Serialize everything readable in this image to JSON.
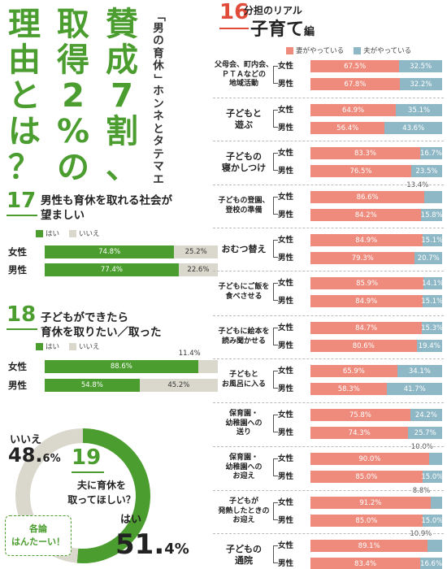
{
  "title": {
    "main_col1": [
      "理",
      "由",
      "と",
      "は",
      "？"
    ],
    "main_col2": [
      "取",
      "得",
      "2",
      "%",
      "の"
    ],
    "main_col3": [
      "賛",
      "成",
      "7",
      "割",
      "、"
    ],
    "sub_chars": [
      "「",
      "男",
      "の",
      "育",
      "休",
      "」",
      "ホ",
      "ン",
      "ネ",
      "と",
      "タ",
      "テ",
      "マ",
      "エ"
    ]
  },
  "colors": {
    "green": "#4a9d2e",
    "grey": "#dad8cc",
    "wife": "#ee8b7c",
    "husband": "#8fb8c6",
    "red": "#e04b3a"
  },
  "chart_data": [
    {
      "type": "bar",
      "number": "17",
      "title_line1": "男性も育休を取れる社会が",
      "title_line2": "望ましい",
      "legend": [
        "はい",
        "いいえ"
      ],
      "categories": [
        "女性",
        "男性"
      ],
      "series": [
        {
          "name": "はい",
          "values": [
            74.8,
            77.4
          ]
        },
        {
          "name": "いいえ",
          "values": [
            25.2,
            22.6
          ]
        }
      ],
      "labels": [
        [
          "74.8%",
          "25.2%"
        ],
        [
          "77.4%",
          "22.6%"
        ]
      ]
    },
    {
      "type": "bar",
      "number": "18",
      "title_line1": "子どもができたら",
      "title_line2": "育休を取りたい／取った",
      "legend": [
        "はい",
        "いいえ"
      ],
      "categories": [
        "女性",
        "男性"
      ],
      "series": [
        {
          "name": "はい",
          "values": [
            88.6,
            54.8
          ]
        },
        {
          "name": "いいえ",
          "values": [
            11.4,
            45.2
          ]
        }
      ],
      "labels": [
        [
          "88.6%",
          "11.4%"
        ],
        [
          "54.8%",
          "45.2%"
        ]
      ],
      "outside_labels": [
        true,
        false
      ]
    },
    {
      "type": "pie",
      "number": "19",
      "question_line1": "夫に育休を",
      "question_line2": "取ってほしい？",
      "slices": [
        {
          "name": "はい",
          "value": 51.4,
          "pct_int": "51.",
          "pct_dec": "4",
          "unit": "%"
        },
        {
          "name": "いいえ",
          "value": 48.6,
          "pct_int": "48.",
          "pct_dec": "6",
          "unit": "%"
        }
      ],
      "note_line1": "各論",
      "note_line2": "はんたーい！"
    },
    {
      "type": "bar",
      "number": "16",
      "title_small": "分担のリアル",
      "title_big": "子育て",
      "title_suffix": "編",
      "legend": [
        "妻がやっている",
        "夫がやっている"
      ],
      "groups": [
        "女性",
        "男性"
      ],
      "categories": [
        {
          "lines": [
            "父母会、町内会、",
            "ＰＴＡなどの",
            "地域活動"
          ],
          "large": false,
          "rows": [
            {
              "wife": 67.5,
              "husband": 32.5,
              "wl": "67.5%",
              "hl": "32.5%"
            },
            {
              "wife": 67.8,
              "husband": 32.2,
              "wl": "67.8%",
              "hl": "32.2%"
            }
          ]
        },
        {
          "lines": [
            "子どもと",
            "遊ぶ"
          ],
          "large": true,
          "rows": [
            {
              "wife": 64.9,
              "husband": 35.1,
              "wl": "64.9%",
              "hl": "35.1%"
            },
            {
              "wife": 56.4,
              "husband": 43.6,
              "wl": "56.4%",
              "hl": "43.6%"
            }
          ]
        },
        {
          "lines": [
            "子どもの",
            "寝かしつけ"
          ],
          "large": true,
          "rows": [
            {
              "wife": 83.3,
              "husband": 16.7,
              "wl": "83.3%",
              "hl": "16.7%"
            },
            {
              "wife": 76.5,
              "husband": 23.5,
              "wl": "76.5%",
              "hl": "23.5%"
            }
          ]
        },
        {
          "lines": [
            "子どもの登園、",
            "登校の準備"
          ],
          "large": false,
          "rows": [
            {
              "wife": 86.6,
              "husband": 13.4,
              "wl": "86.6%",
              "hl": "13.4%",
              "out": true
            },
            {
              "wife": 84.2,
              "husband": 15.8,
              "wl": "84.2%",
              "hl": "15.8%"
            }
          ]
        },
        {
          "lines": [
            "おむつ替え"
          ],
          "large": true,
          "rows": [
            {
              "wife": 84.9,
              "husband": 15.1,
              "wl": "84.9%",
              "hl": "15.1%"
            },
            {
              "wife": 79.3,
              "husband": 20.7,
              "wl": "79.3%",
              "hl": "20.7%"
            }
          ]
        },
        {
          "lines": [
            "子どもにご飯を",
            "食べさせる"
          ],
          "large": false,
          "rows": [
            {
              "wife": 85.9,
              "husband": 14.1,
              "wl": "85.9%",
              "hl": "14.1%"
            },
            {
              "wife": 84.9,
              "husband": 15.1,
              "wl": "84.9%",
              "hl": "15.1%"
            }
          ]
        },
        {
          "lines": [
            "子どもに絵本を",
            "読み聞かせる"
          ],
          "large": false,
          "rows": [
            {
              "wife": 84.7,
              "husband": 15.3,
              "wl": "84.7%",
              "hl": "15.3%"
            },
            {
              "wife": 80.6,
              "husband": 19.4,
              "wl": "80.6%",
              "hl": "19.4%"
            }
          ]
        },
        {
          "lines": [
            "子どもと",
            "お風呂に入る"
          ],
          "large": false,
          "rows": [
            {
              "wife": 65.9,
              "husband": 34.1,
              "wl": "65.9%",
              "hl": "34.1%"
            },
            {
              "wife": 58.3,
              "husband": 41.7,
              "wl": "58.3%",
              "hl": "41.7%"
            }
          ]
        },
        {
          "lines": [
            "保育園・",
            "幼稚園への",
            "送り"
          ],
          "large": false,
          "rows": [
            {
              "wife": 75.8,
              "husband": 24.2,
              "wl": "75.8%",
              "hl": "24.2%"
            },
            {
              "wife": 74.3,
              "husband": 25.7,
              "wl": "74.3%",
              "hl": "25.7%"
            }
          ]
        },
        {
          "lines": [
            "保育園・",
            "幼稚園への",
            "お迎え"
          ],
          "large": false,
          "rows": [
            {
              "wife": 90.0,
              "husband": 10.0,
              "wl": "90.0%",
              "hl": "10.0%",
              "out": true
            },
            {
              "wife": 85.0,
              "husband": 15.0,
              "wl": "85.0%",
              "hl": "15.0%"
            }
          ]
        },
        {
          "lines": [
            "子どもが",
            "発熱したときの",
            "お迎え"
          ],
          "large": false,
          "rows": [
            {
              "wife": 91.2,
              "husband": 8.8,
              "wl": "91.2%",
              "hl": "8.8%",
              "out": true
            },
            {
              "wife": 85.0,
              "husband": 15.0,
              "wl": "85.0%",
              "hl": "15.0%"
            }
          ]
        },
        {
          "lines": [
            "子どもの",
            "通院"
          ],
          "large": true,
          "rows": [
            {
              "wife": 89.1,
              "husband": 10.9,
              "wl": "89.1%",
              "hl": "10.9%",
              "out": true
            },
            {
              "wife": 83.4,
              "husband": 16.6,
              "wl": "83.4%",
              "hl": "16.6%"
            }
          ]
        }
      ]
    }
  ]
}
